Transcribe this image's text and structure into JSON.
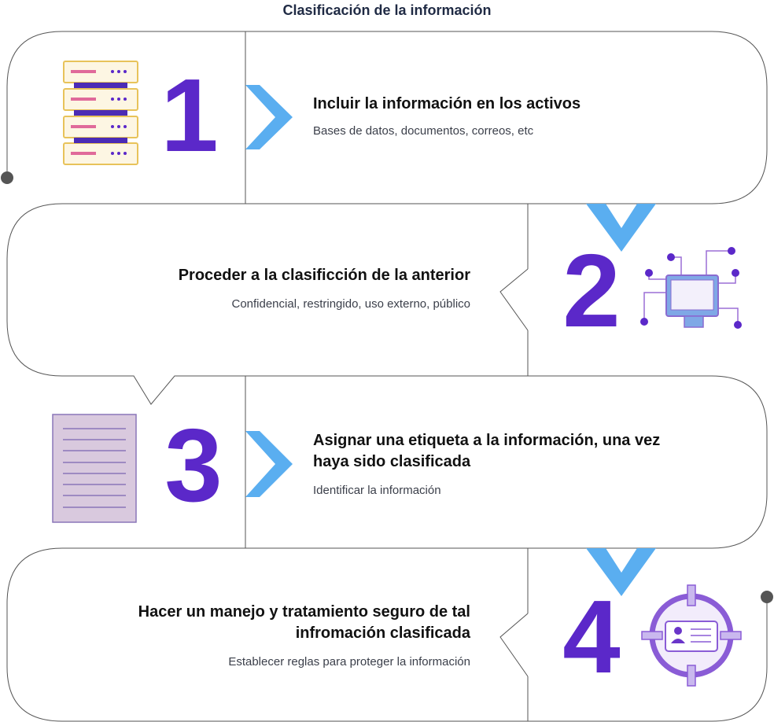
{
  "title": "Clasificación de la información",
  "colors": {
    "accent_purple": "#5b28c9",
    "chevron_blue": "#5aaef0",
    "outline": "#555555"
  },
  "steps": [
    {
      "number": "1",
      "title_lines": [
        "Incluir la información en los activos"
      ],
      "subtitle": "Bases de datos, documentos, correos, etc",
      "icon": "server-rack-icon"
    },
    {
      "number": "2",
      "title_lines": [
        "Proceder a la clasificción de la anterior"
      ],
      "subtitle": "Confidencial, restringido, uso externo, público",
      "icon": "computer-network-icon"
    },
    {
      "number": "3",
      "title_lines": [
        "Asignar una etiqueta a la información, una vez",
        "haya sido clasificada"
      ],
      "subtitle": "Identificar la información",
      "icon": "document-icon"
    },
    {
      "number": "4",
      "title_lines": [
        "Hacer un manejo y tratamiento seguro de tal",
        "infromación clasificada"
      ],
      "subtitle": "Establecer reglas para proteger la información",
      "icon": "id-card-target-icon"
    }
  ]
}
